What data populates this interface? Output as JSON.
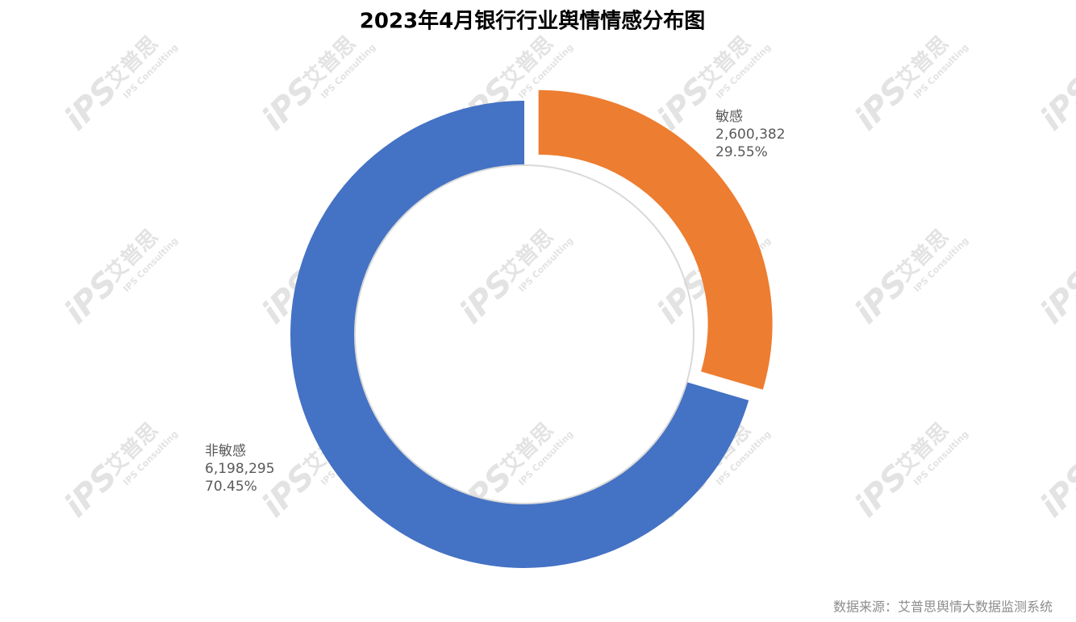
{
  "chart_data": {
    "type": "donut",
    "title": "2023年4月银行行业舆情情感分布图",
    "categories": [
      "非敏感",
      "敏感"
    ],
    "values": [
      6198295,
      2600382
    ],
    "value_labels": [
      "6,198,295",
      "2,600,382"
    ],
    "percents": [
      70.45,
      29.55
    ],
    "percent_labels": [
      "70.45%",
      "29.55%"
    ],
    "colors": [
      "#4472c4",
      "#ed7d31"
    ],
    "exploded": [
      false,
      true
    ],
    "source": "数据来源：艾普思舆情大数据监测系统",
    "watermark": {
      "logo": "iPS",
      "brand": "艾普思",
      "en": "IPS Consulting"
    }
  }
}
